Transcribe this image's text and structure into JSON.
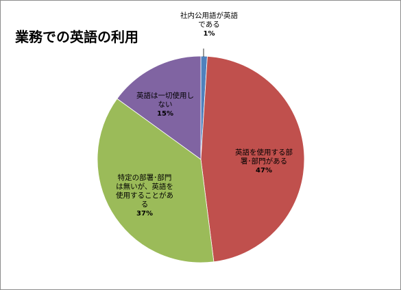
{
  "chart_data": {
    "type": "pie",
    "title": "業務での英語の利用",
    "slices": [
      {
        "label_lines": [
          "社内公用語が英語",
          "である"
        ],
        "value": 1,
        "pct_label": "1%",
        "color": "#4f81bd"
      },
      {
        "label_lines": [
          "英語を使用する部",
          "署･部門がある"
        ],
        "value": 47,
        "pct_label": "47%",
        "color": "#c0504d"
      },
      {
        "label_lines": [
          "特定の部署･部門",
          "は無いが、英語を",
          "使用することがあ",
          "る"
        ],
        "value": 37,
        "pct_label": "37%",
        "color": "#9bbb59"
      },
      {
        "label_lines": [
          "英語は一切使用し",
          "ない"
        ],
        "value": 15,
        "pct_label": "15%",
        "color": "#8064a2"
      }
    ]
  }
}
